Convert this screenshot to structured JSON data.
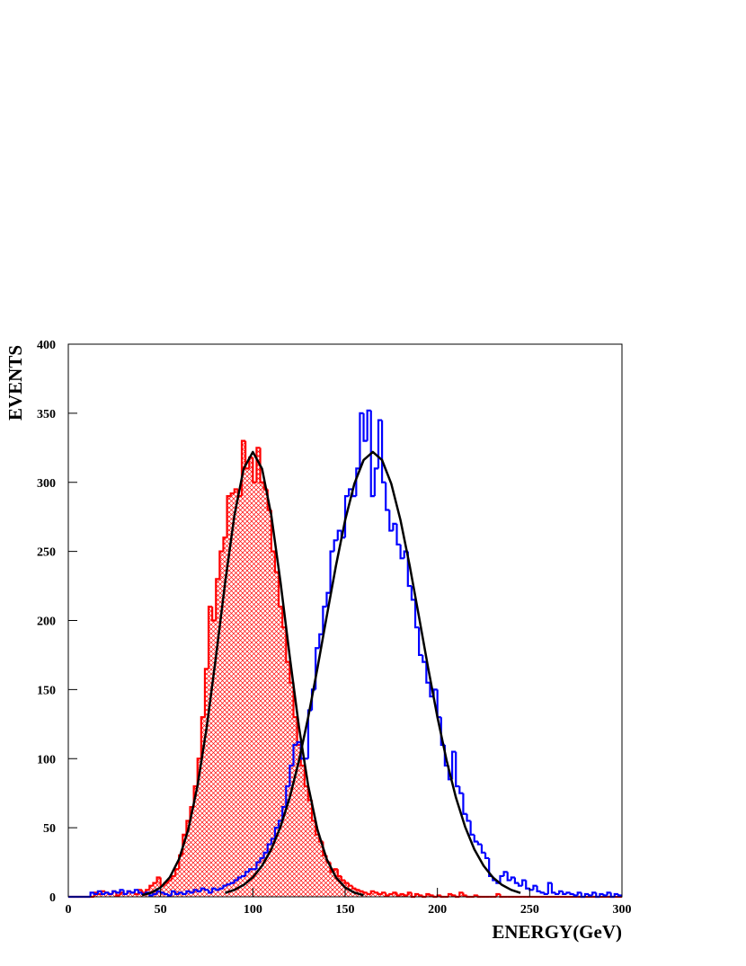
{
  "chart_data": {
    "type": "histogram",
    "xlabel": "ENERGY(GeV)",
    "ylabel": "EVENTS",
    "xlim": [
      0,
      300
    ],
    "ylim": [
      0,
      400
    ],
    "xticks": [
      0,
      50,
      100,
      150,
      200,
      250,
      300
    ],
    "yticks": [
      0,
      50,
      100,
      150,
      200,
      250,
      300,
      350,
      400
    ],
    "bins": [
      0,
      2,
      4,
      6,
      8,
      10,
      12,
      14,
      16,
      18,
      20,
      22,
      24,
      26,
      28,
      30,
      32,
      34,
      36,
      38,
      40,
      42,
      44,
      46,
      48,
      50,
      52,
      54,
      56,
      58,
      60,
      62,
      64,
      66,
      68,
      70,
      72,
      74,
      76,
      78,
      80,
      82,
      84,
      86,
      88,
      90,
      92,
      94,
      96,
      98,
      100,
      102,
      104,
      106,
      108,
      110,
      112,
      114,
      116,
      118,
      120,
      122,
      124,
      126,
      128,
      130,
      132,
      134,
      136,
      138,
      140,
      142,
      144,
      146,
      148,
      150,
      152,
      154,
      156,
      158,
      160,
      162,
      164,
      166,
      168,
      170,
      172,
      174,
      176,
      178,
      180,
      182,
      184,
      186,
      188,
      190,
      192,
      194,
      196,
      198,
      200,
      202,
      204,
      206,
      208,
      210,
      212,
      214,
      216,
      218,
      220,
      222,
      224,
      226,
      228,
      230,
      232,
      234,
      236,
      238,
      240,
      242,
      244,
      246,
      248,
      250,
      252,
      254,
      256,
      258,
      260,
      262,
      264,
      266,
      268,
      270,
      272,
      274,
      276,
      278,
      280,
      282,
      284,
      286,
      288,
      290,
      292,
      294,
      296,
      298,
      300
    ],
    "series": [
      {
        "color": "#ff0000",
        "hatch": "crosshatch",
        "values": [
          0,
          0,
          0,
          0,
          0,
          0,
          0,
          3,
          2,
          4,
          3,
          2,
          4,
          1,
          3,
          2,
          4,
          3,
          2,
          5,
          3,
          5,
          8,
          10,
          14,
          8,
          10,
          12,
          15,
          20,
          30,
          45,
          55,
          65,
          80,
          100,
          130,
          165,
          210,
          200,
          230,
          250,
          260,
          290,
          292,
          295,
          290,
          330,
          310,
          318,
          300,
          325,
          300,
          295,
          280,
          250,
          235,
          210,
          195,
          170,
          155,
          130,
          110,
          95,
          80,
          70,
          55,
          45,
          40,
          30,
          25,
          18,
          20,
          15,
          12,
          10,
          8,
          6,
          5,
          4,
          3,
          2,
          4,
          3,
          2,
          3,
          1,
          2,
          3,
          1,
          2,
          1,
          3,
          0,
          2,
          1,
          0,
          2,
          1,
          0,
          1,
          0,
          0,
          2,
          1,
          0,
          3,
          1,
          0,
          0,
          1,
          0,
          0,
          0,
          0,
          0,
          2,
          0,
          0,
          0,
          0,
          0,
          0,
          0,
          0,
          0,
          0,
          0,
          0,
          0,
          0,
          0,
          0,
          0,
          0,
          0,
          0,
          0,
          0,
          0,
          0,
          0,
          0,
          0,
          0,
          0,
          0,
          0,
          0,
          0
        ]
      },
      {
        "color": "#0000ff",
        "hatch": "none",
        "values": [
          0,
          0,
          0,
          0,
          0,
          0,
          3,
          2,
          4,
          2,
          3,
          2,
          4,
          3,
          5,
          2,
          4,
          3,
          5,
          3,
          2,
          3,
          1,
          2,
          4,
          3,
          2,
          1,
          4,
          2,
          3,
          2,
          4,
          3,
          5,
          4,
          6,
          5,
          3,
          6,
          5,
          6,
          8,
          9,
          10,
          12,
          14,
          15,
          18,
          20,
          20,
          25,
          28,
          32,
          38,
          42,
          50,
          55,
          65,
          80,
          95,
          110,
          112,
          100,
          100,
          135,
          150,
          180,
          190,
          210,
          220,
          250,
          258,
          265,
          260,
          290,
          295,
          290,
          310,
          350,
          330,
          352,
          290,
          310,
          345,
          300,
          280,
          265,
          270,
          255,
          245,
          250,
          225,
          215,
          195,
          175,
          170,
          155,
          145,
          150,
          130,
          110,
          95,
          85,
          105,
          80,
          75,
          60,
          55,
          45,
          40,
          38,
          32,
          28,
          15,
          12,
          10,
          15,
          18,
          12,
          14,
          10,
          8,
          12,
          6,
          5,
          8,
          4,
          3,
          2,
          10,
          3,
          2,
          4,
          2,
          3,
          2,
          1,
          3,
          0,
          2,
          1,
          3,
          0,
          2,
          1,
          3,
          0,
          2,
          1
        ]
      }
    ],
    "lines": [
      {
        "color": "#000000",
        "x": [
          40,
          45,
          50,
          55,
          60,
          65,
          70,
          75,
          80,
          85,
          90,
          95,
          100,
          105,
          110,
          115,
          120,
          125,
          130,
          135,
          140,
          145,
          150,
          155,
          160
        ],
        "values": [
          1.2,
          3.0,
          6.8,
          14.1,
          27.3,
          48.6,
          80.3,
          122.8,
          173.7,
          227.6,
          276.0,
          309.8,
          322,
          309.8,
          276.0,
          227.6,
          173.7,
          122.8,
          80.3,
          48.6,
          27.3,
          14.1,
          6.8,
          3.0,
          1.2
        ]
      },
      {
        "color": "#000000",
        "x": [
          85,
          90,
          95,
          100,
          105,
          110,
          115,
          120,
          125,
          130,
          135,
          140,
          145,
          150,
          155,
          160,
          165,
          170,
          175,
          180,
          185,
          190,
          195,
          200,
          205,
          210,
          215,
          220,
          225,
          230,
          235,
          240,
          245
        ],
        "values": [
          2.8,
          5.0,
          8.6,
          14.1,
          22.5,
          34.4,
          50.7,
          72.0,
          98.6,
          130.1,
          165.5,
          202.8,
          239.5,
          272.6,
          299.0,
          316.1,
          322,
          316.1,
          299.0,
          272.6,
          239.5,
          202.8,
          165.5,
          130.1,
          98.6,
          72.0,
          50.7,
          34.4,
          22.5,
          14.1,
          8.6,
          5.0,
          2.8
        ]
      }
    ]
  }
}
